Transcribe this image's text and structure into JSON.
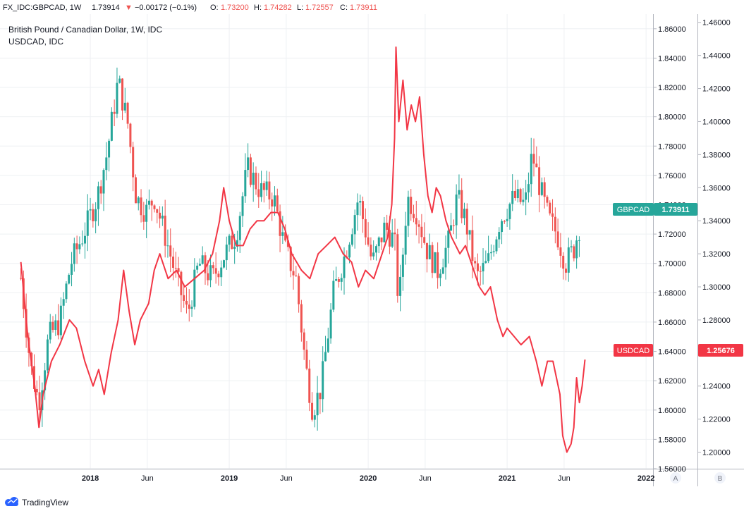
{
  "header": {
    "symbol": "FX_IDC:GBPCAD, 1W",
    "last": "1.73914",
    "change": "−0.00172 (−0.1%)",
    "o_label": "O:",
    "o_val": "1.73200",
    "h_label": "H:",
    "h_val": "1.74282",
    "l_label": "L:",
    "l_val": "1.72557",
    "c_label": "C:",
    "c_val": "1.73911",
    "down_arrow": "▼"
  },
  "legend": {
    "main_title": "British Pound / Canadian Dollar, 1W, IDC",
    "overlay_title": "USDCAD, IDC"
  },
  "footer": {
    "brand": "TradingView"
  },
  "scale_buttons": {
    "a": "A",
    "b": "B"
  },
  "colors": {
    "up": "#26a69a",
    "down": "#ef5350",
    "overlay": "#f23645",
    "grid": "#eef0f3",
    "text": "#131722"
  },
  "chart_data": {
    "type": "candlestick+line",
    "series": [
      {
        "name": "GBPCAD",
        "axis": "A",
        "last_label": "GBPCAD",
        "last_value": "1.73911",
        "ohlc_anchors": [
          {
            "t": 2017.5,
            "close": 1.69
          },
          {
            "t": 2017.57,
            "close": 1.63
          },
          {
            "t": 2017.63,
            "close": 1.605
          },
          {
            "t": 2017.7,
            "close": 1.65
          },
          {
            "t": 2017.78,
            "close": 1.66
          },
          {
            "t": 2017.86,
            "close": 1.7
          },
          {
            "t": 2017.95,
            "close": 1.72
          },
          {
            "t": 2018.05,
            "close": 1.745
          },
          {
            "t": 2018.12,
            "close": 1.775
          },
          {
            "t": 2018.2,
            "close": 1.825
          },
          {
            "t": 2018.27,
            "close": 1.795
          },
          {
            "t": 2018.33,
            "close": 1.745
          },
          {
            "t": 2018.4,
            "close": 1.735
          },
          {
            "t": 2018.46,
            "close": 1.745
          },
          {
            "t": 2018.55,
            "close": 1.715
          },
          {
            "t": 2018.62,
            "close": 1.69
          },
          {
            "t": 2018.7,
            "close": 1.665
          },
          {
            "t": 2018.78,
            "close": 1.7
          },
          {
            "t": 2018.88,
            "close": 1.69
          },
          {
            "t": 2018.96,
            "close": 1.705
          },
          {
            "t": 2019.05,
            "close": 1.72
          },
          {
            "t": 2019.13,
            "close": 1.765
          },
          {
            "t": 2019.22,
            "close": 1.75
          },
          {
            "t": 2019.32,
            "close": 1.745
          },
          {
            "t": 2019.4,
            "close": 1.71
          },
          {
            "t": 2019.48,
            "close": 1.69
          },
          {
            "t": 2019.55,
            "close": 1.63
          },
          {
            "t": 2019.6,
            "close": 1.6
          },
          {
            "t": 2019.66,
            "close": 1.615
          },
          {
            "t": 2019.75,
            "close": 1.68
          },
          {
            "t": 2019.83,
            "close": 1.705
          },
          {
            "t": 2019.93,
            "close": 1.745
          },
          {
            "t": 2020.03,
            "close": 1.7
          },
          {
            "t": 2020.12,
            "close": 1.725
          },
          {
            "t": 2020.19,
            "close": 1.715
          },
          {
            "t": 2020.22,
            "close": 1.67
          },
          {
            "t": 2020.28,
            "close": 1.745
          },
          {
            "t": 2020.35,
            "close": 1.735
          },
          {
            "t": 2020.42,
            "close": 1.71
          },
          {
            "t": 2020.5,
            "close": 1.695
          },
          {
            "t": 2020.58,
            "close": 1.715
          },
          {
            "t": 2020.64,
            "close": 1.745
          },
          {
            "t": 2020.7,
            "close": 1.73
          },
          {
            "t": 2020.78,
            "close": 1.69
          },
          {
            "t": 2020.86,
            "close": 1.7
          },
          {
            "t": 2020.95,
            "close": 1.73
          },
          {
            "t": 2021.05,
            "close": 1.745
          },
          {
            "t": 2021.13,
            "close": 1.74
          },
          {
            "t": 2021.18,
            "close": 1.775
          },
          {
            "t": 2021.24,
            "close": 1.75
          },
          {
            "t": 2021.3,
            "close": 1.73
          },
          {
            "t": 2021.36,
            "close": 1.72
          },
          {
            "t": 2021.42,
            "close": 1.7
          },
          {
            "t": 2021.48,
            "close": 1.71
          },
          {
            "t": 2021.52,
            "close": 1.725
          },
          {
            "t": 2021.53,
            "close": 1.739
          }
        ]
      },
      {
        "name": "USDCAD",
        "axis": "B",
        "last_label": "USDCAD",
        "last_value": "1.25676",
        "points": [
          [
            2017.5,
            1.315
          ],
          [
            2017.55,
            1.27
          ],
          [
            2017.6,
            1.24
          ],
          [
            2017.63,
            1.215
          ],
          [
            2017.66,
            1.235
          ],
          [
            2017.72,
            1.255
          ],
          [
            2017.78,
            1.265
          ],
          [
            2017.85,
            1.28
          ],
          [
            2017.9,
            1.275
          ],
          [
            2017.96,
            1.255
          ],
          [
            2018.02,
            1.24
          ],
          [
            2018.06,
            1.25
          ],
          [
            2018.1,
            1.235
          ],
          [
            2018.15,
            1.26
          ],
          [
            2018.2,
            1.28
          ],
          [
            2018.24,
            1.31
          ],
          [
            2018.28,
            1.285
          ],
          [
            2018.32,
            1.265
          ],
          [
            2018.36,
            1.28
          ],
          [
            2018.42,
            1.29
          ],
          [
            2018.46,
            1.31
          ],
          [
            2018.5,
            1.32
          ],
          [
            2018.56,
            1.305
          ],
          [
            2018.62,
            1.31
          ],
          [
            2018.68,
            1.3
          ],
          [
            2018.75,
            1.305
          ],
          [
            2018.82,
            1.31
          ],
          [
            2018.88,
            1.32
          ],
          [
            2018.93,
            1.34
          ],
          [
            2018.96,
            1.36
          ],
          [
            2019.0,
            1.34
          ],
          [
            2019.05,
            1.325
          ],
          [
            2019.1,
            1.325
          ],
          [
            2019.15,
            1.335
          ],
          [
            2019.2,
            1.34
          ],
          [
            2019.25,
            1.34
          ],
          [
            2019.3,
            1.345
          ],
          [
            2019.35,
            1.345
          ],
          [
            2019.4,
            1.335
          ],
          [
            2019.45,
            1.32
          ],
          [
            2019.52,
            1.31
          ],
          [
            2019.58,
            1.305
          ],
          [
            2019.64,
            1.32
          ],
          [
            2019.7,
            1.325
          ],
          [
            2019.76,
            1.33
          ],
          [
            2019.82,
            1.32
          ],
          [
            2019.88,
            1.315
          ],
          [
            2019.93,
            1.3
          ],
          [
            2019.98,
            1.31
          ],
          [
            2020.04,
            1.305
          ],
          [
            2020.1,
            1.32
          ],
          [
            2020.14,
            1.33
          ],
          [
            2020.17,
            1.35
          ],
          [
            2020.19,
            1.39
          ],
          [
            2020.2,
            1.445
          ],
          [
            2020.22,
            1.4
          ],
          [
            2020.25,
            1.425
          ],
          [
            2020.28,
            1.395
          ],
          [
            2020.31,
            1.41
          ],
          [
            2020.34,
            1.4
          ],
          [
            2020.37,
            1.415
          ],
          [
            2020.4,
            1.38
          ],
          [
            2020.43,
            1.355
          ],
          [
            2020.46,
            1.345
          ],
          [
            2020.49,
            1.36
          ],
          [
            2020.52,
            1.355
          ],
          [
            2020.56,
            1.34
          ],
          [
            2020.6,
            1.33
          ],
          [
            2020.66,
            1.32
          ],
          [
            2020.7,
            1.325
          ],
          [
            2020.74,
            1.315
          ],
          [
            2020.8,
            1.3
          ],
          [
            2020.84,
            1.295
          ],
          [
            2020.88,
            1.3
          ],
          [
            2020.93,
            1.28
          ],
          [
            2020.97,
            1.27
          ],
          [
            2021.0,
            1.275
          ],
          [
            2021.05,
            1.27
          ],
          [
            2021.1,
            1.265
          ],
          [
            2021.16,
            1.27
          ],
          [
            2021.21,
            1.255
          ],
          [
            2021.25,
            1.24
          ],
          [
            2021.29,
            1.255
          ],
          [
            2021.33,
            1.255
          ],
          [
            2021.38,
            1.235
          ],
          [
            2021.4,
            1.21
          ],
          [
            2021.43,
            1.2
          ],
          [
            2021.46,
            1.205
          ],
          [
            2021.48,
            1.215
          ],
          [
            2021.5,
            1.245
          ],
          [
            2021.52,
            1.23
          ],
          [
            2021.54,
            1.24
          ],
          [
            2021.56,
            1.256
          ]
        ]
      }
    ],
    "x_range": [
      2017.35,
      2022.05
    ],
    "x_ticks": [
      {
        "t": 2018.0,
        "label": "2018",
        "bold": true
      },
      {
        "t": 2018.41,
        "label": "Jun",
        "bold": false
      },
      {
        "t": 2019.0,
        "label": "2019",
        "bold": true
      },
      {
        "t": 2019.41,
        "label": "Jun",
        "bold": false
      },
      {
        "t": 2020.0,
        "label": "2020",
        "bold": true
      },
      {
        "t": 2020.41,
        "label": "Jun",
        "bold": false
      },
      {
        "t": 2021.0,
        "label": "2021",
        "bold": true
      },
      {
        "t": 2021.41,
        "label": "Jun",
        "bold": false
      },
      {
        "t": 2022.0,
        "label": "2022",
        "bold": true
      }
    ],
    "axis_a": {
      "range": [
        1.56,
        1.87
      ],
      "ticks": [
        "1.56000",
        "1.58000",
        "1.60000",
        "1.62000",
        "1.64000",
        "1.66000",
        "1.68000",
        "1.70000",
        "1.72000",
        "1.74000",
        "1.76000",
        "1.78000",
        "1.80000",
        "1.82000",
        "1.84000",
        "1.86000"
      ]
    },
    "axis_b": {
      "range": [
        1.19,
        1.465
      ],
      "ticks": [
        "1.20000",
        "1.22000",
        "1.24000",
        "1.26000",
        "1.28000",
        "1.30000",
        "1.32000",
        "1.34000",
        "1.36000",
        "1.38000",
        "1.40000",
        "1.42000",
        "1.44000",
        "1.46000"
      ]
    }
  }
}
